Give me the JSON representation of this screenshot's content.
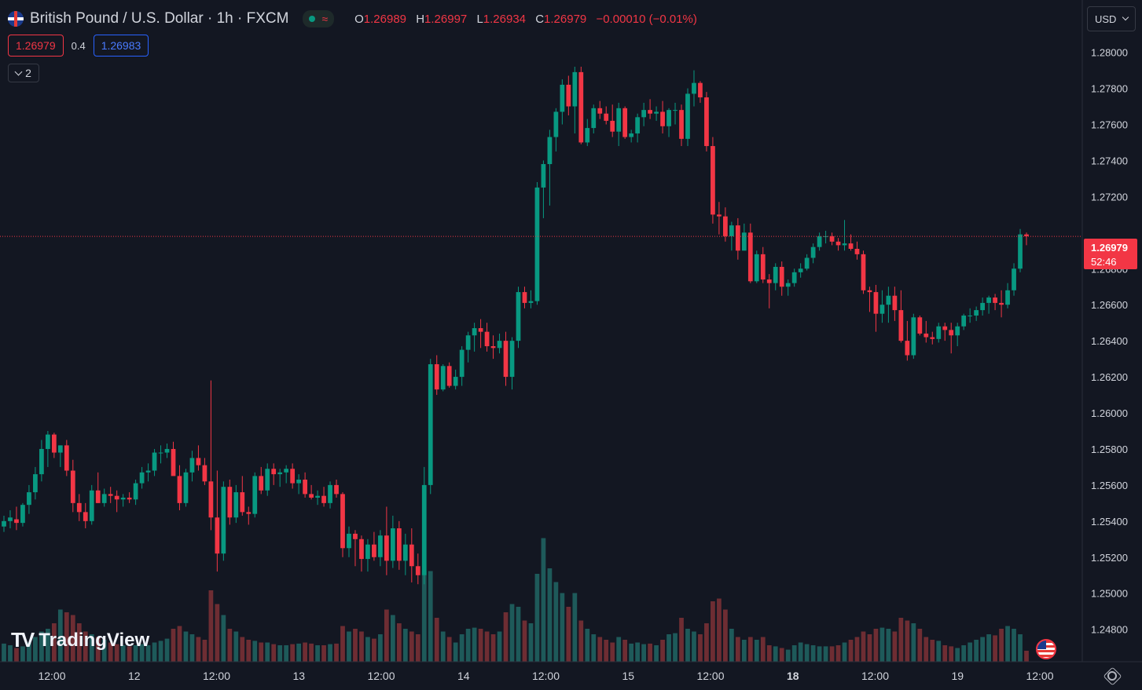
{
  "header": {
    "title": "British Pound / U.S. Dollar · 1h · FXCM",
    "ohlc": [
      {
        "key": "O",
        "value": "1.26989"
      },
      {
        "key": "H",
        "value": "1.26997"
      },
      {
        "key": "L",
        "value": "1.26934"
      },
      {
        "key": "C",
        "value": "1.26979"
      }
    ],
    "change": "−0.00010 (−0.01%)",
    "status_icon": "market-open-dot",
    "wave_icon": "≈"
  },
  "trade": {
    "sell_price": "1.26979",
    "spread": "0.4",
    "buy_price": "1.26983"
  },
  "indicators_toggle": {
    "count": "2"
  },
  "currency": {
    "label": "USD"
  },
  "logo": {
    "mark": "TV",
    "text": "TradingView"
  },
  "price_label": {
    "price": "1.26979",
    "countdown": "52:46"
  },
  "colors": {
    "up": "#089981",
    "down": "#f23645",
    "vol_up": "#1e5a5a",
    "vol_down": "#6e2d33",
    "bg": "#131722",
    "axis_text": "#d1d4dc"
  },
  "chart_data": {
    "type": "candlestick",
    "current_price": 1.26979,
    "y_range": [
      1.2462,
      1.2829
    ],
    "y_ticks": [
      "1.28000",
      "1.27800",
      "1.27600",
      "1.27400",
      "1.27200",
      "1.26800",
      "1.26600",
      "1.26400",
      "1.26200",
      "1.26000",
      "1.25800",
      "1.25600",
      "1.25400",
      "1.25200",
      "1.25000",
      "1.24800"
    ],
    "x_ticks": [
      "12:00",
      "12",
      "12:00",
      "13",
      "12:00",
      "14",
      "12:00",
      "15",
      "12:00",
      "18",
      "12:00",
      "19",
      "12:00"
    ],
    "bold_x_ticks": [
      "18"
    ],
    "candles": [
      [
        1.2537,
        1.2543,
        1.2534,
        1.254,
        0.33
      ],
      [
        1.254,
        1.2546,
        1.2536,
        1.2542,
        0.3
      ],
      [
        1.2541,
        1.2548,
        1.2535,
        1.2539,
        0.25
      ],
      [
        1.2539,
        1.255,
        1.2537,
        1.2549,
        0.28
      ],
      [
        1.2549,
        1.256,
        1.2544,
        1.2556,
        0.35
      ],
      [
        1.2556,
        1.257,
        1.2552,
        1.2566,
        0.45
      ],
      [
        1.2566,
        1.2585,
        1.2562,
        1.258,
        0.55
      ],
      [
        1.258,
        1.259,
        1.257,
        1.2588,
        0.6
      ],
      [
        1.2588,
        1.2589,
        1.2575,
        1.2578,
        0.7
      ],
      [
        1.2578,
        1.2582,
        1.257,
        1.2582,
        0.95
      ],
      [
        1.2582,
        1.2585,
        1.2565,
        1.2568,
        0.9
      ],
      [
        1.2568,
        1.2574,
        1.2545,
        1.255,
        0.85
      ],
      [
        1.255,
        1.2555,
        1.254,
        1.2545,
        0.7
      ],
      [
        1.2545,
        1.255,
        1.2536,
        1.254,
        0.55
      ],
      [
        1.254,
        1.256,
        1.2538,
        1.2557,
        0.5
      ],
      [
        1.2557,
        1.2567,
        1.255,
        1.255,
        0.45
      ],
      [
        1.255,
        1.2558,
        1.2548,
        1.2555,
        0.4
      ],
      [
        1.2555,
        1.2559,
        1.255,
        1.2554,
        0.35
      ],
      [
        1.2554,
        1.2557,
        1.2545,
        1.2552,
        0.32
      ],
      [
        1.2552,
        1.2555,
        1.2548,
        1.2553,
        0.3
      ],
      [
        1.2553,
        1.2556,
        1.255,
        1.2552,
        0.28
      ],
      [
        1.2552,
        1.2563,
        1.2549,
        1.2561,
        0.3
      ],
      [
        1.2561,
        1.257,
        1.2558,
        1.2567,
        0.32
      ],
      [
        1.2567,
        1.2572,
        1.2562,
        1.2568,
        0.3
      ],
      [
        1.2568,
        1.258,
        1.2565,
        1.2578,
        0.35
      ],
      [
        1.2578,
        1.2582,
        1.2572,
        1.2578,
        0.38
      ],
      [
        1.2578,
        1.2583,
        1.2575,
        1.258,
        0.42
      ],
      [
        1.258,
        1.2584,
        1.2566,
        1.2565,
        0.6
      ],
      [
        1.2565,
        1.2571,
        1.2546,
        1.255,
        0.65
      ],
      [
        1.255,
        1.2569,
        1.2548,
        1.2567,
        0.55
      ],
      [
        1.2567,
        1.2579,
        1.2562,
        1.2575,
        0.5
      ],
      [
        1.2575,
        1.2582,
        1.2568,
        1.2571,
        0.45
      ],
      [
        1.2571,
        1.2575,
        1.256,
        1.2562,
        0.4
      ],
      [
        1.2562,
        1.2618,
        1.2535,
        1.2542,
        1.3
      ],
      [
        1.2542,
        1.2568,
        1.2512,
        1.2522,
        1.05
      ],
      [
        1.2522,
        1.2562,
        1.2518,
        1.2559,
        0.85
      ],
      [
        1.2559,
        1.2563,
        1.2538,
        1.2542,
        0.6
      ],
      [
        1.2542,
        1.256,
        1.2539,
        1.2556,
        0.55
      ],
      [
        1.2556,
        1.2565,
        1.2543,
        1.2545,
        0.45
      ],
      [
        1.2545,
        1.2548,
        1.2538,
        1.2544,
        0.4
      ],
      [
        1.2544,
        1.2567,
        1.2542,
        1.2565,
        0.38
      ],
      [
        1.2565,
        1.257,
        1.2555,
        1.2557,
        0.35
      ],
      [
        1.2557,
        1.2572,
        1.2554,
        1.2569,
        0.35
      ],
      [
        1.2569,
        1.2572,
        1.256,
        1.2566,
        0.32
      ],
      [
        1.2566,
        1.2569,
        1.2559,
        1.2567,
        0.3
      ],
      [
        1.2567,
        1.2571,
        1.2561,
        1.2569,
        0.3
      ],
      [
        1.2569,
        1.2572,
        1.2558,
        1.2561,
        0.32
      ],
      [
        1.2561,
        1.2566,
        1.2555,
        1.2563,
        0.33
      ],
      [
        1.2563,
        1.2567,
        1.2553,
        1.2555,
        0.35
      ],
      [
        1.2555,
        1.256,
        1.2552,
        1.2553,
        0.33
      ],
      [
        1.2553,
        1.2557,
        1.2549,
        1.2554,
        0.3
      ],
      [
        1.2554,
        1.2559,
        1.2548,
        1.255,
        0.3
      ],
      [
        1.255,
        1.2562,
        1.2547,
        1.256,
        0.32
      ],
      [
        1.256,
        1.2563,
        1.2553,
        1.2555,
        0.33
      ],
      [
        1.2555,
        1.2556,
        1.252,
        1.2525,
        0.65
      ],
      [
        1.2525,
        1.2537,
        1.252,
        1.2533,
        0.55
      ],
      [
        1.2533,
        1.2535,
        1.2515,
        1.253,
        0.6
      ],
      [
        1.253,
        1.2532,
        1.2512,
        1.2519,
        0.55
      ],
      [
        1.2519,
        1.253,
        1.2512,
        1.2527,
        0.45
      ],
      [
        1.2527,
        1.2534,
        1.2518,
        1.252,
        0.42
      ],
      [
        1.252,
        1.2535,
        1.2515,
        1.2532,
        0.5
      ],
      [
        1.2532,
        1.2548,
        1.251,
        1.2518,
        0.95
      ],
      [
        1.2518,
        1.2543,
        1.2514,
        1.2536,
        0.85
      ],
      [
        1.2536,
        1.254,
        1.2513,
        1.2518,
        0.7
      ],
      [
        1.2518,
        1.2533,
        1.251,
        1.2527,
        0.6
      ],
      [
        1.2527,
        1.2536,
        1.2506,
        1.2515,
        0.55
      ],
      [
        1.2515,
        1.2522,
        1.2505,
        1.251,
        0.5
      ],
      [
        1.251,
        1.257,
        1.2505,
        1.256,
        1.65
      ],
      [
        1.256,
        1.263,
        1.2555,
        1.2627,
        1.65
      ],
      [
        1.2627,
        1.2632,
        1.261,
        1.2613,
        0.8
      ],
      [
        1.2613,
        1.2627,
        1.2612,
        1.2626,
        0.55
      ],
      [
        1.2626,
        1.2628,
        1.2614,
        1.2615,
        0.45
      ],
      [
        1.2615,
        1.2624,
        1.2613,
        1.262,
        0.35
      ],
      [
        1.262,
        1.2637,
        1.2615,
        1.2635,
        0.5
      ],
      [
        1.2635,
        1.2645,
        1.2628,
        1.2643,
        0.6
      ],
      [
        1.2643,
        1.265,
        1.2634,
        1.2647,
        0.62
      ],
      [
        1.2647,
        1.2652,
        1.2636,
        1.2645,
        0.6
      ],
      [
        1.2645,
        1.265,
        1.2634,
        1.2637,
        0.55
      ],
      [
        1.2637,
        1.2643,
        1.263,
        1.2636,
        0.5
      ],
      [
        1.2636,
        1.2644,
        1.2633,
        1.264,
        0.55
      ],
      [
        1.264,
        1.2645,
        1.2615,
        1.262,
        0.9
      ],
      [
        1.262,
        1.2642,
        1.2613,
        1.264,
        1.05
      ],
      [
        1.264,
        1.267,
        1.2636,
        1.2667,
        1.0
      ],
      [
        1.2667,
        1.267,
        1.2658,
        1.2661,
        0.75
      ],
      [
        1.2661,
        1.2668,
        1.2658,
        1.2662,
        0.7
      ],
      [
        1.2662,
        1.2728,
        1.266,
        1.2725,
        1.6
      ],
      [
        1.2725,
        1.274,
        1.2708,
        1.2738,
        2.25
      ],
      [
        1.2738,
        1.2757,
        1.2715,
        1.2753,
        1.7
      ],
      [
        1.2753,
        1.2769,
        1.2745,
        1.2767,
        1.45
      ],
      [
        1.2767,
        1.2785,
        1.276,
        1.2782,
        1.25
      ],
      [
        1.2782,
        1.2787,
        1.2765,
        1.277,
        1.0
      ],
      [
        1.277,
        1.2792,
        1.2755,
        1.2789,
        1.25
      ],
      [
        1.2789,
        1.2792,
        1.2749,
        1.275,
        0.75
      ],
      [
        1.275,
        1.2763,
        1.2748,
        1.2758,
        0.6
      ],
      [
        1.2758,
        1.2771,
        1.2755,
        1.2769,
        0.5
      ],
      [
        1.2769,
        1.2773,
        1.2763,
        1.2766,
        0.45
      ],
      [
        1.2766,
        1.277,
        1.276,
        1.2762,
        0.4
      ],
      [
        1.2762,
        1.2771,
        1.2753,
        1.2756,
        0.35
      ],
      [
        1.2756,
        1.2772,
        1.2748,
        1.2769,
        0.45
      ],
      [
        1.2769,
        1.277,
        1.2752,
        1.2753,
        0.4
      ],
      [
        1.2753,
        1.2757,
        1.275,
        1.2755,
        0.33
      ],
      [
        1.2755,
        1.2766,
        1.275,
        1.2764,
        0.35
      ],
      [
        1.2764,
        1.2772,
        1.2759,
        1.2768,
        0.32
      ],
      [
        1.2768,
        1.2774,
        1.2763,
        1.2766,
        0.33
      ],
      [
        1.2766,
        1.277,
        1.2762,
        1.2767,
        0.3
      ],
      [
        1.2767,
        1.2773,
        1.2755,
        1.2759,
        0.4
      ],
      [
        1.2759,
        1.2769,
        1.2753,
        1.2768,
        0.5
      ],
      [
        1.2768,
        1.2772,
        1.276,
        1.2768,
        0.52
      ],
      [
        1.2768,
        1.2771,
        1.2748,
        1.2752,
        0.8
      ],
      [
        1.2752,
        1.278,
        1.2748,
        1.2777,
        0.6
      ],
      [
        1.2777,
        1.279,
        1.277,
        1.2783,
        0.55
      ],
      [
        1.2783,
        1.2784,
        1.2772,
        1.2775,
        0.5
      ],
      [
        1.2775,
        1.2778,
        1.2745,
        1.2748,
        0.7
      ],
      [
        1.2748,
        1.2753,
        1.2705,
        1.271,
        1.1
      ],
      [
        1.271,
        1.2717,
        1.2699,
        1.2709,
        1.15
      ],
      [
        1.2709,
        1.2714,
        1.2695,
        1.2698,
        0.95
      ],
      [
        1.2698,
        1.2706,
        1.269,
        1.2704,
        0.6
      ],
      [
        1.2704,
        1.2708,
        1.2685,
        1.269,
        0.45
      ],
      [
        1.269,
        1.2705,
        1.269,
        1.27,
        0.4
      ],
      [
        1.27,
        1.2705,
        1.2672,
        1.2673,
        0.45
      ],
      [
        1.2673,
        1.269,
        1.2672,
        1.2688,
        0.4
      ],
      [
        1.2688,
        1.2692,
        1.2672,
        1.2674,
        0.45
      ],
      [
        1.2674,
        1.2677,
        1.2658,
        1.2672,
        0.3
      ],
      [
        1.2672,
        1.2683,
        1.2668,
        1.2681,
        0.28
      ],
      [
        1.2681,
        1.2684,
        1.2665,
        1.267,
        0.25
      ],
      [
        1.267,
        1.2674,
        1.2665,
        1.2672,
        0.22
      ],
      [
        1.2672,
        1.268,
        1.267,
        1.2678,
        0.3
      ],
      [
        1.2678,
        1.2683,
        1.2675,
        1.268,
        0.35
      ],
      [
        1.268,
        1.2688,
        1.2679,
        1.2686,
        0.32
      ],
      [
        1.2686,
        1.2694,
        1.2683,
        1.2692,
        0.3
      ],
      [
        1.2692,
        1.27,
        1.269,
        1.2698,
        0.28
      ],
      [
        1.2698,
        1.2701,
        1.2694,
        1.2698,
        0.28
      ],
      [
        1.2698,
        1.27,
        1.2693,
        1.2695,
        0.28
      ],
      [
        1.2695,
        1.2697,
        1.269,
        1.2693,
        0.3
      ],
      [
        1.2693,
        1.2707,
        1.269,
        1.2694,
        0.35
      ],
      [
        1.2694,
        1.2699,
        1.269,
        1.2691,
        0.4
      ],
      [
        1.2691,
        1.2695,
        1.2685,
        1.2688,
        0.45
      ],
      [
        1.2688,
        1.269,
        1.2666,
        1.2668,
        0.55
      ],
      [
        1.2668,
        1.267,
        1.2656,
        1.2667,
        0.5
      ],
      [
        1.2667,
        1.2671,
        1.2645,
        1.2655,
        0.6
      ],
      [
        1.2655,
        1.2668,
        1.265,
        1.266,
        0.62
      ],
      [
        1.266,
        1.267,
        1.265,
        1.2665,
        0.6
      ],
      [
        1.2665,
        1.267,
        1.2651,
        1.2657,
        0.55
      ],
      [
        1.2657,
        1.2668,
        1.2639,
        1.264,
        0.8
      ],
      [
        1.264,
        1.2651,
        1.2629,
        1.2632,
        0.75
      ],
      [
        1.2632,
        1.2655,
        1.263,
        1.2653,
        0.7
      ],
      [
        1.2653,
        1.2654,
        1.2643,
        1.2644,
        0.6
      ],
      [
        1.2644,
        1.2651,
        1.2639,
        1.2642,
        0.45
      ],
      [
        1.2642,
        1.2645,
        1.2638,
        1.2641,
        0.4
      ],
      [
        1.2641,
        1.265,
        1.2639,
        1.2648,
        0.38
      ],
      [
        1.2648,
        1.265,
        1.264,
        1.2646,
        0.3
      ],
      [
        1.2646,
        1.265,
        1.2633,
        1.2643,
        0.28
      ],
      [
        1.2643,
        1.265,
        1.2637,
        1.2648,
        0.25
      ],
      [
        1.2648,
        1.2655,
        1.2646,
        1.2654,
        0.3
      ],
      [
        1.2654,
        1.2658,
        1.265,
        1.2654,
        0.35
      ],
      [
        1.2654,
        1.2659,
        1.2651,
        1.2657,
        0.4
      ],
      [
        1.2657,
        1.2664,
        1.2654,
        1.2661,
        0.45
      ],
      [
        1.2661,
        1.2665,
        1.2655,
        1.2664,
        0.5
      ],
      [
        1.2664,
        1.2666,
        1.2657,
        1.2661,
        0.48
      ],
      [
        1.2661,
        1.2668,
        1.2653,
        1.266,
        0.6
      ],
      [
        1.266,
        1.2672,
        1.2658,
        1.2668,
        0.65
      ],
      [
        1.2668,
        1.2683,
        1.2665,
        1.268,
        0.6
      ],
      [
        1.268,
        1.2702,
        1.2678,
        1.2699,
        0.5
      ],
      [
        1.2699,
        1.27,
        1.2693,
        1.2698,
        0.2
      ]
    ]
  }
}
